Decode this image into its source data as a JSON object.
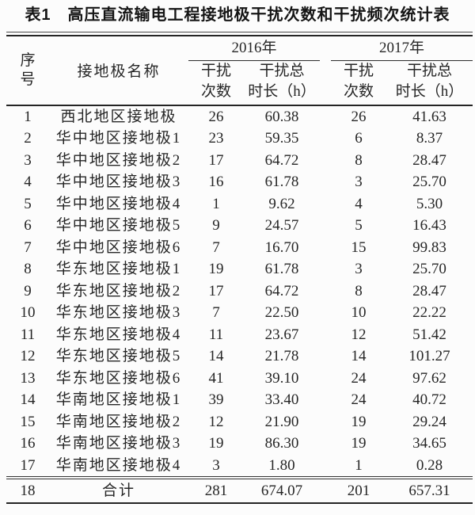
{
  "title": "表1　高压直流输电工程接地极干扰次数和干扰频次统计表",
  "table": {
    "header": {
      "index_lines": [
        "序",
        "号"
      ],
      "name": "接地极名称",
      "year_2016": "2016年",
      "year_2017": "2017年",
      "count_lines": [
        "干扰",
        "次数"
      ],
      "duration_lines": [
        "干扰总",
        "时长（h）"
      ]
    },
    "rows": [
      {
        "no": "1",
        "name": "西北地区接地极",
        "c2016": "26",
        "d2016": "60.38",
        "c2017": "26",
        "d2017": "41.63"
      },
      {
        "no": "2",
        "name": "华中地区接地极1",
        "c2016": "23",
        "d2016": "59.35",
        "c2017": "6",
        "d2017": "8.37"
      },
      {
        "no": "3",
        "name": "华中地区接地极2",
        "c2016": "17",
        "d2016": "64.72",
        "c2017": "8",
        "d2017": "28.47"
      },
      {
        "no": "4",
        "name": "华中地区接地极3",
        "c2016": "16",
        "d2016": "61.78",
        "c2017": "3",
        "d2017": "25.70"
      },
      {
        "no": "5",
        "name": "华中地区接地极4",
        "c2016": "1",
        "d2016": "9.62",
        "c2017": "4",
        "d2017": "5.30"
      },
      {
        "no": "6",
        "name": "华中地区接地极5",
        "c2016": "9",
        "d2016": "24.57",
        "c2017": "5",
        "d2017": "16.43"
      },
      {
        "no": "7",
        "name": "华中地区接地极6",
        "c2016": "7",
        "d2016": "16.70",
        "c2017": "15",
        "d2017": "99.83"
      },
      {
        "no": "8",
        "name": "华东地区接地极1",
        "c2016": "19",
        "d2016": "61.78",
        "c2017": "3",
        "d2017": "25.70"
      },
      {
        "no": "9",
        "name": "华东地区接地极2",
        "c2016": "17",
        "d2016": "64.72",
        "c2017": "8",
        "d2017": "28.47"
      },
      {
        "no": "10",
        "name": "华东地区接地极3",
        "c2016": "7",
        "d2016": "22.50",
        "c2017": "10",
        "d2017": "22.22"
      },
      {
        "no": "11",
        "name": "华东地区接地极4",
        "c2016": "11",
        "d2016": "23.67",
        "c2017": "12",
        "d2017": "51.42"
      },
      {
        "no": "12",
        "name": "华东地区接地极5",
        "c2016": "14",
        "d2016": "21.78",
        "c2017": "14",
        "d2017": "101.27"
      },
      {
        "no": "13",
        "name": "华东地区接地极6",
        "c2016": "41",
        "d2016": "39.10",
        "c2017": "24",
        "d2017": "97.62"
      },
      {
        "no": "14",
        "name": "华南地区接地极1",
        "c2016": "39",
        "d2016": "33.40",
        "c2017": "24",
        "d2017": "40.72"
      },
      {
        "no": "15",
        "name": "华南地区接地极2",
        "c2016": "12",
        "d2016": "21.90",
        "c2017": "19",
        "d2017": "29.24"
      },
      {
        "no": "16",
        "name": "华南地区接地极3",
        "c2016": "19",
        "d2016": "86.30",
        "c2017": "19",
        "d2017": "34.65"
      },
      {
        "no": "17",
        "name": "华南地区接地极4",
        "c2016": "3",
        "d2016": "1.80",
        "c2017": "1",
        "d2017": "0.28"
      }
    ],
    "total": {
      "no": "18",
      "name": "合计",
      "c2016": "281",
      "d2016": "674.07",
      "c2017": "201",
      "d2017": "657.31"
    }
  }
}
